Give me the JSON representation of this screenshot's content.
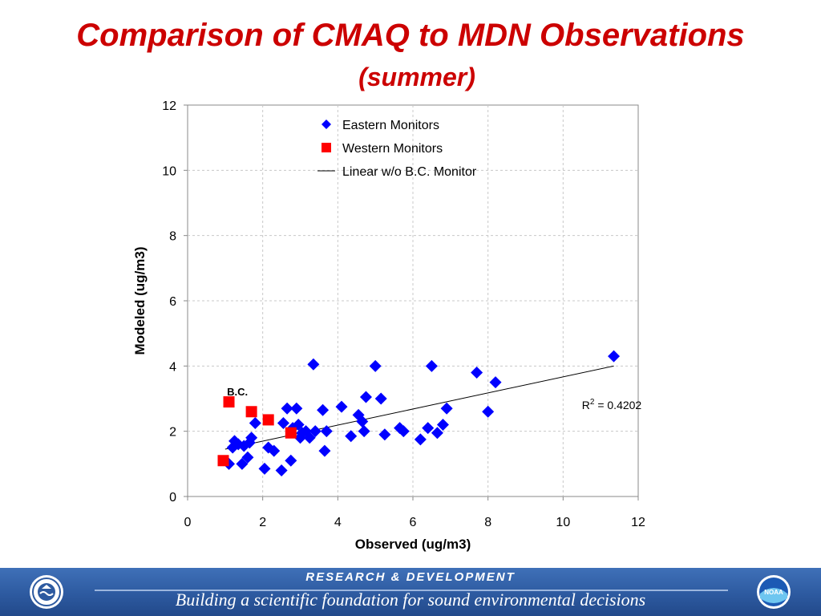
{
  "slide": {
    "title": "Comparison of CMAQ to MDN Observations",
    "subtitle": "(summer)"
  },
  "footer": {
    "heading": "RESEARCH & DEVELOPMENT",
    "tagline": "Building a scientific foundation for sound environmental decisions",
    "left_logo": "epa-seal-icon",
    "right_logo": "noaa-logo-icon",
    "right_logo_text": "NOAA",
    "colors": {
      "band": "#2d5aa0",
      "line": "#9bb6de"
    }
  },
  "chart_data": {
    "type": "scatter",
    "title": "",
    "xlabel": "Observed (ug/m3)",
    "ylabel": "Modeled (ug/m3)",
    "xlim": [
      0,
      12
    ],
    "ylim": [
      0,
      12
    ],
    "xticks": [
      0,
      2,
      4,
      6,
      8,
      10,
      12
    ],
    "yticks": [
      0,
      2,
      4,
      6,
      8,
      10,
      12
    ],
    "grid": true,
    "legend_position": "top-center",
    "series": [
      {
        "name": "Eastern Monitors",
        "marker": "diamond",
        "color": "#0000ff",
        "points": [
          [
            1.1,
            1.0
          ],
          [
            1.2,
            1.5
          ],
          [
            1.25,
            1.7
          ],
          [
            1.35,
            1.6
          ],
          [
            1.45,
            1.0
          ],
          [
            1.5,
            1.55
          ],
          [
            1.6,
            1.2
          ],
          [
            1.65,
            1.65
          ],
          [
            1.7,
            1.8
          ],
          [
            1.8,
            2.25
          ],
          [
            2.05,
            0.85
          ],
          [
            2.15,
            1.5
          ],
          [
            2.3,
            1.4
          ],
          [
            2.5,
            0.8
          ],
          [
            2.55,
            2.25
          ],
          [
            2.65,
            2.7
          ],
          [
            2.75,
            1.1
          ],
          [
            2.8,
            2.1
          ],
          [
            2.9,
            2.7
          ],
          [
            2.95,
            2.2
          ],
          [
            3.0,
            1.8
          ],
          [
            3.05,
            1.95
          ],
          [
            3.15,
            2.0
          ],
          [
            3.25,
            1.8
          ],
          [
            3.35,
            4.05
          ],
          [
            3.4,
            2.0
          ],
          [
            3.6,
            2.65
          ],
          [
            3.65,
            1.4
          ],
          [
            3.7,
            2.0
          ],
          [
            4.1,
            2.75
          ],
          [
            4.35,
            1.85
          ],
          [
            4.55,
            2.5
          ],
          [
            4.65,
            2.3
          ],
          [
            4.7,
            2.0
          ],
          [
            4.75,
            3.05
          ],
          [
            5.0,
            4.0
          ],
          [
            5.15,
            3.0
          ],
          [
            5.25,
            1.9
          ],
          [
            5.65,
            2.1
          ],
          [
            5.75,
            2.0
          ],
          [
            6.2,
            1.75
          ],
          [
            6.4,
            2.1
          ],
          [
            6.5,
            4.0
          ],
          [
            6.65,
            1.95
          ],
          [
            6.8,
            2.2
          ],
          [
            6.9,
            2.7
          ],
          [
            7.7,
            3.8
          ],
          [
            8.0,
            2.6
          ],
          [
            8.2,
            3.5
          ],
          [
            11.35,
            4.3
          ]
        ]
      },
      {
        "name": "Western Monitors",
        "marker": "square",
        "color": "#ff0000",
        "points": [
          [
            0.95,
            1.1
          ],
          [
            1.1,
            2.9
          ],
          [
            1.7,
            2.6
          ],
          [
            2.15,
            2.35
          ],
          [
            2.75,
            1.95
          ]
        ]
      },
      {
        "name": "Linear w/o B.C. Monitor",
        "marker": "line",
        "color": "#000000",
        "points": [
          [
            1.0,
            1.45
          ],
          [
            11.35,
            4.0
          ]
        ]
      }
    ],
    "annotations": [
      {
        "id": "bc",
        "text": "B.C.",
        "x": 1.05,
        "y": 3.1
      },
      {
        "id": "r2",
        "prefix": "R",
        "superscript": "2",
        "text": " = 0.4202",
        "x": 10.5,
        "y": 2.9
      }
    ]
  }
}
